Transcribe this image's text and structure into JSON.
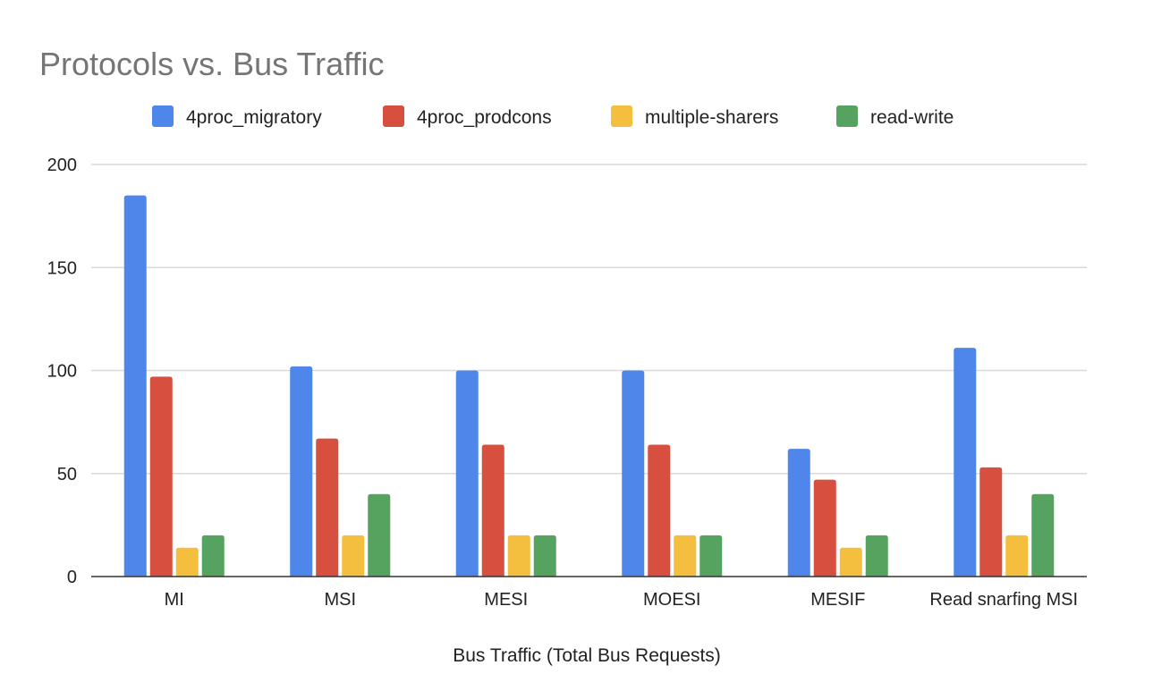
{
  "chart_data": {
    "type": "bar",
    "title": "Protocols vs. Bus Traffic",
    "xlabel": "Bus Traffic (Total Bus Requests)",
    "ylabel": "",
    "ylim": [
      0,
      200
    ],
    "yticks": [
      0,
      50,
      100,
      150,
      200
    ],
    "grid": true,
    "legend_position": "top",
    "categories": [
      "MI",
      "MSI",
      "MESI",
      "MOESI",
      "MESIF",
      "Read snarfing MSI"
    ],
    "series": [
      {
        "name": "4proc_migratory",
        "color": "#4e86ea",
        "values": [
          185,
          102,
          100,
          100,
          62,
          111
        ]
      },
      {
        "name": "4proc_prodcons",
        "color": "#d64f3f",
        "values": [
          97,
          67,
          64,
          64,
          47,
          53
        ]
      },
      {
        "name": "multiple-sharers",
        "color": "#f4be3f",
        "values": [
          14,
          20,
          20,
          20,
          14,
          20
        ]
      },
      {
        "name": "read-write",
        "color": "#56a35f",
        "values": [
          20,
          40,
          20,
          20,
          20,
          40
        ]
      }
    ],
    "colors": {
      "grid": "#d9d9d9",
      "axis": "#333333",
      "title": "#757575",
      "text": "#222222"
    }
  }
}
